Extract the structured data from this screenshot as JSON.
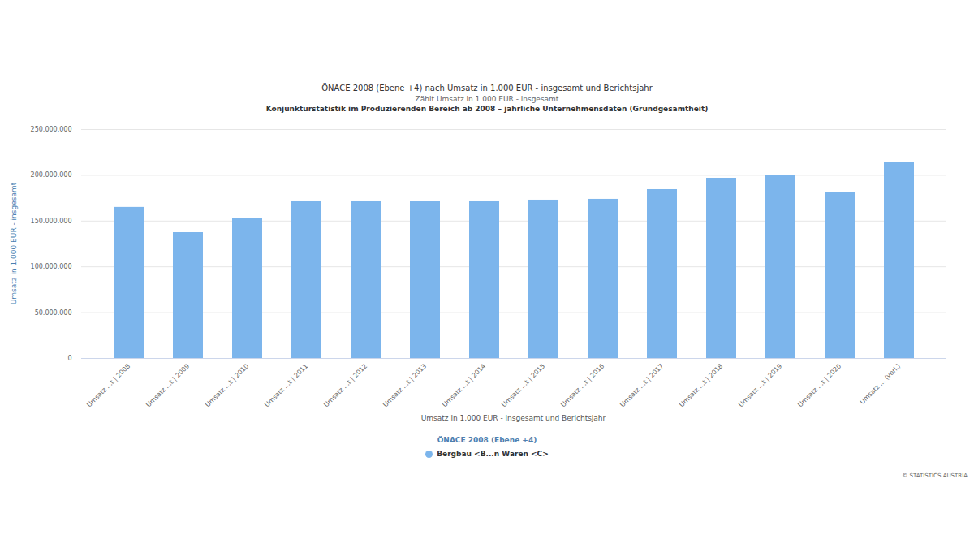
{
  "chart_data": {
    "type": "bar",
    "title": "ÖNACE 2008 (Ebene +4) nach Umsatz in 1.000 EUR - insgesamt und Berichtsjahr",
    "subtitle": "Zählt Umsatz in 1.000 EUR - insgesamt",
    "caption": "Konjunkturstatistik im Produzierenden Bereich ab 2008 – jährliche Unternehmensdaten (Grundgesamtheit)",
    "x_label": "Umsatz in 1.000 EUR - insgesamt und Berichtsjahr",
    "y_label": "Umsatz in 1.000 EUR - insgesamt",
    "legend_title": "ÖNACE 2008 (Ebene +4)",
    "credit": "© STATISTICS AUSTRIA",
    "categories": [
      "Umsatz ...t | 2008",
      "Umsatz ...t | 2009",
      "Umsatz ...t | 2010",
      "Umsatz ...t | 2011",
      "Umsatz ...t | 2012",
      "Umsatz ...t | 2013",
      "Umsatz ...t | 2014",
      "Umsatz ...t | 2015",
      "Umsatz ...t | 2016",
      "Umsatz ...t | 2017",
      "Umsatz ...t | 2018",
      "Umsatz ...t | 2019",
      "Umsatz ...t | 2020",
      "Umsatz ... (vorl.)"
    ],
    "series": [
      {
        "name": "Bergbau <B...n Waren <C>",
        "color": "#7cb5ec",
        "values": [
          165000000,
          137400000,
          152500000,
          172000000,
          172000000,
          171100000,
          172000000,
          172900000,
          173800000,
          184400000,
          196800000,
          199500000,
          181700000,
          214500000
        ]
      }
    ],
    "ylim": [
      0,
      250000000
    ],
    "yticks": [
      {
        "value": 0,
        "label": "0"
      },
      {
        "value": 50000000,
        "label": "50.000.000"
      },
      {
        "value": 100000000,
        "label": "100.000.000"
      },
      {
        "value": 150000000,
        "label": "150.000.000"
      },
      {
        "value": 200000000,
        "label": "200.000.000"
      },
      {
        "value": 250000000,
        "label": "250.000.000"
      }
    ],
    "grid": true,
    "legend": "bottom"
  }
}
